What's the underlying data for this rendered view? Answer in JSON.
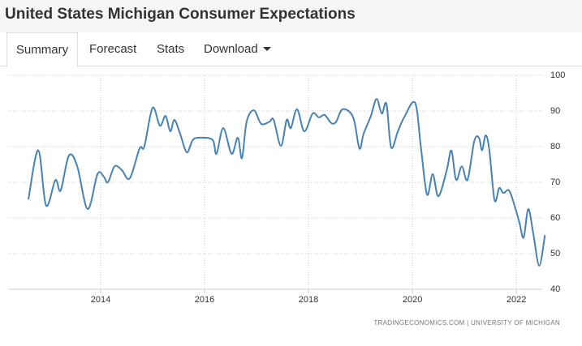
{
  "header": {
    "title": "United States Michigan Consumer Expectations"
  },
  "tabs": [
    "Summary",
    "Forecast",
    "Stats",
    "Download"
  ],
  "chart_data": {
    "type": "line",
    "source": "TRADINGECONOMICS.COM | UNIVERSITY OF MICHIGAN",
    "series": [
      {
        "name": "Consumer Expectations",
        "color": "#4682b4",
        "x": [
          2012.61,
          2012.8,
          2012.95,
          2013.13,
          2013.23,
          2013.39,
          2013.55,
          2013.75,
          2013.94,
          2014.06,
          2014.14,
          2014.27,
          2014.41,
          2014.56,
          2014.75,
          2014.84,
          2015.0,
          2015.14,
          2015.25,
          2015.34,
          2015.42,
          2015.53,
          2015.66,
          2015.78,
          2015.97,
          2016.16,
          2016.23,
          2016.36,
          2016.52,
          2016.64,
          2016.72,
          2016.81,
          2016.95,
          2017.09,
          2017.25,
          2017.33,
          2017.47,
          2017.58,
          2017.66,
          2017.78,
          2017.92,
          2018.08,
          2018.2,
          2018.31,
          2018.44,
          2018.53,
          2018.66,
          2018.86,
          2018.98,
          2019.06,
          2019.2,
          2019.31,
          2019.41,
          2019.5,
          2019.59,
          2019.72,
          2019.84,
          2020.05,
          2020.16,
          2020.28,
          2020.39,
          2020.5,
          2020.66,
          2020.75,
          2020.84,
          2020.95,
          2021.06,
          2021.19,
          2021.28,
          2021.34,
          2021.41,
          2021.48,
          2021.58,
          2021.67,
          2021.75,
          2021.86,
          2021.97,
          2022.06,
          2022.14,
          2022.23,
          2022.33,
          2022.44,
          2022.55
        ],
        "values": [
          65.2,
          79,
          63.5,
          70.6,
          67.7,
          77.5,
          74.5,
          62.5,
          72.3,
          71.6,
          70,
          74.5,
          73.4,
          71.1,
          79.5,
          80,
          90.9,
          85.9,
          88.6,
          84.3,
          87.5,
          83.6,
          78.4,
          82,
          82.5,
          81.8,
          78,
          85.2,
          78,
          82.5,
          76.8,
          87,
          90.2,
          86.4,
          87,
          87.5,
          80.2,
          87.5,
          85.2,
          90.5,
          84.3,
          89.3,
          88.2,
          88.9,
          86.6,
          87,
          90.5,
          88.2,
          79.5,
          83.6,
          88.6,
          93.4,
          89.3,
          92,
          79.8,
          84.3,
          88.2,
          92.3,
          80.2,
          66.6,
          72.3,
          66.1,
          73.4,
          78.9,
          70.7,
          74.5,
          70.7,
          81.6,
          82.5,
          79,
          83.2,
          79,
          65,
          68.4,
          67,
          67.7,
          63.2,
          58.6,
          54.5,
          62.5,
          55.2,
          46.6,
          55.2
        ]
      }
    ],
    "xlim": [
      2012.22,
      2022.56
    ],
    "xticks": [
      2014,
      2016,
      2018,
      2020,
      2022
    ],
    "ylim": [
      40,
      100
    ],
    "yticks": [
      40,
      50,
      60,
      70,
      80,
      90,
      100
    ],
    "grid": true
  }
}
